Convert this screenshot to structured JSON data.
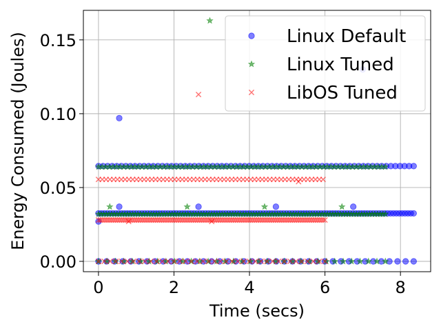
{
  "chart_data": {
    "type": "scatter",
    "title": "",
    "xlabel": "Time (secs)",
    "ylabel": "Energy Consumed (Joules)",
    "xlim": [
      -0.4,
      8.8
    ],
    "ylim": [
      -0.007,
      0.17
    ],
    "xticks": [
      0,
      2,
      4,
      6,
      8
    ],
    "xtick_labels": [
      "0",
      "2",
      "4",
      "6",
      "8"
    ],
    "yticks": [
      0.0,
      0.05,
      0.1,
      0.15
    ],
    "ytick_labels": [
      "0.00",
      "0.05",
      "0.10",
      "0.15"
    ],
    "grid": true,
    "legend_position": "top-right",
    "series": [
      {
        "name": "Linux Default",
        "marker": "circle",
        "color": "#0000ff",
        "points": [
          [
            0.55,
            0.097
          ],
          [
            0.55,
            0.037
          ],
          [
            2.65,
            0.037
          ],
          [
            4.7,
            0.037
          ],
          [
            6.75,
            0.037
          ],
          [
            7.0,
            0.13
          ],
          [
            0.0,
            0.027
          ]
        ],
        "bands": [
          {
            "x_start": 0.0,
            "x_end": 8.35,
            "y": 0.0645,
            "n": 70
          },
          {
            "x_start": 0.0,
            "x_end": 8.35,
            "y": 0.0325,
            "n": 110
          },
          {
            "x_start": 0.0,
            "x_end": 8.35,
            "y": 0.0,
            "n": 40
          }
        ]
      },
      {
        "name": "Linux Tuned",
        "marker": "star",
        "color": "#008000",
        "points": [
          [
            2.95,
            0.163
          ],
          [
            0.3,
            0.037
          ],
          [
            2.35,
            0.037
          ],
          [
            4.4,
            0.037
          ],
          [
            6.45,
            0.037
          ]
        ],
        "bands": [
          {
            "x_start": 0.0,
            "x_end": 7.6,
            "y": 0.064,
            "n": 80
          },
          {
            "x_start": 0.0,
            "x_end": 7.6,
            "y": 0.032,
            "n": 110
          },
          {
            "x_start": 0.0,
            "x_end": 7.6,
            "y": 0.0,
            "n": 35
          }
        ]
      },
      {
        "name": "LibOS Tuned",
        "marker": "x",
        "color": "#ff0000",
        "points": [
          [
            2.65,
            0.113
          ],
          [
            0.8,
            0.027
          ],
          [
            3.0,
            0.027
          ],
          [
            5.3,
            0.054
          ]
        ],
        "bands": [
          {
            "x_start": 0.0,
            "x_end": 5.95,
            "y": 0.0555,
            "n": 60
          },
          {
            "x_start": 0.0,
            "x_end": 6.0,
            "y": 0.028,
            "n": 120
          },
          {
            "x_start": 0.0,
            "x_end": 6.0,
            "y": 0.0,
            "n": 40
          }
        ]
      }
    ]
  }
}
